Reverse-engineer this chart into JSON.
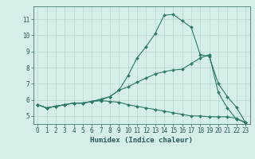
{
  "title": "",
  "xlabel": "Humidex (Indice chaleur)",
  "ylabel": "",
  "xlim": [
    -0.5,
    23.5
  ],
  "ylim": [
    4.5,
    11.8
  ],
  "yticks": [
    5,
    6,
    7,
    8,
    9,
    10,
    11
  ],
  "xticks": [
    0,
    1,
    2,
    3,
    4,
    5,
    6,
    7,
    8,
    9,
    10,
    11,
    12,
    13,
    14,
    15,
    16,
    17,
    18,
    19,
    20,
    21,
    22,
    23
  ],
  "background_color": "#d5eee9",
  "grid_color": "#b8d8d0",
  "line_color": "#2a7a6a",
  "series1_x": [
    0,
    1,
    2,
    3,
    4,
    5,
    6,
    7,
    8,
    9,
    10,
    11,
    12,
    13,
    14,
    15,
    16,
    17,
    18,
    19,
    20,
    21,
    22,
    23
  ],
  "series1_y": [
    5.7,
    5.5,
    5.6,
    5.7,
    5.8,
    5.8,
    5.9,
    6.0,
    6.2,
    6.6,
    7.5,
    8.6,
    9.3,
    10.1,
    11.25,
    11.3,
    10.9,
    10.5,
    8.8,
    8.7,
    7.0,
    6.2,
    5.55,
    4.6
  ],
  "series2_x": [
    0,
    1,
    2,
    3,
    4,
    5,
    6,
    7,
    8,
    9,
    10,
    11,
    12,
    13,
    14,
    15,
    16,
    17,
    18,
    19,
    20,
    21,
    22,
    23
  ],
  "series2_y": [
    5.7,
    5.5,
    5.6,
    5.7,
    5.8,
    5.8,
    5.9,
    6.05,
    6.2,
    6.6,
    6.8,
    7.1,
    7.35,
    7.6,
    7.75,
    7.85,
    7.9,
    8.25,
    8.6,
    8.8,
    6.45,
    5.5,
    4.8,
    4.6
  ],
  "series3_x": [
    0,
    1,
    2,
    3,
    4,
    5,
    6,
    7,
    8,
    9,
    10,
    11,
    12,
    13,
    14,
    15,
    16,
    17,
    18,
    19,
    20,
    21,
    22,
    23
  ],
  "series3_y": [
    5.7,
    5.5,
    5.6,
    5.7,
    5.8,
    5.8,
    5.9,
    5.95,
    5.9,
    5.85,
    5.7,
    5.6,
    5.5,
    5.4,
    5.3,
    5.2,
    5.1,
    5.0,
    5.0,
    4.95,
    4.95,
    4.95,
    4.85,
    4.6
  ],
  "marker": "D",
  "marker_size": 2.0,
  "line_width": 0.8,
  "font_color": "#2a5a5a",
  "tick_label_fontsize": 5.5,
  "xlabel_fontsize": 6.5
}
